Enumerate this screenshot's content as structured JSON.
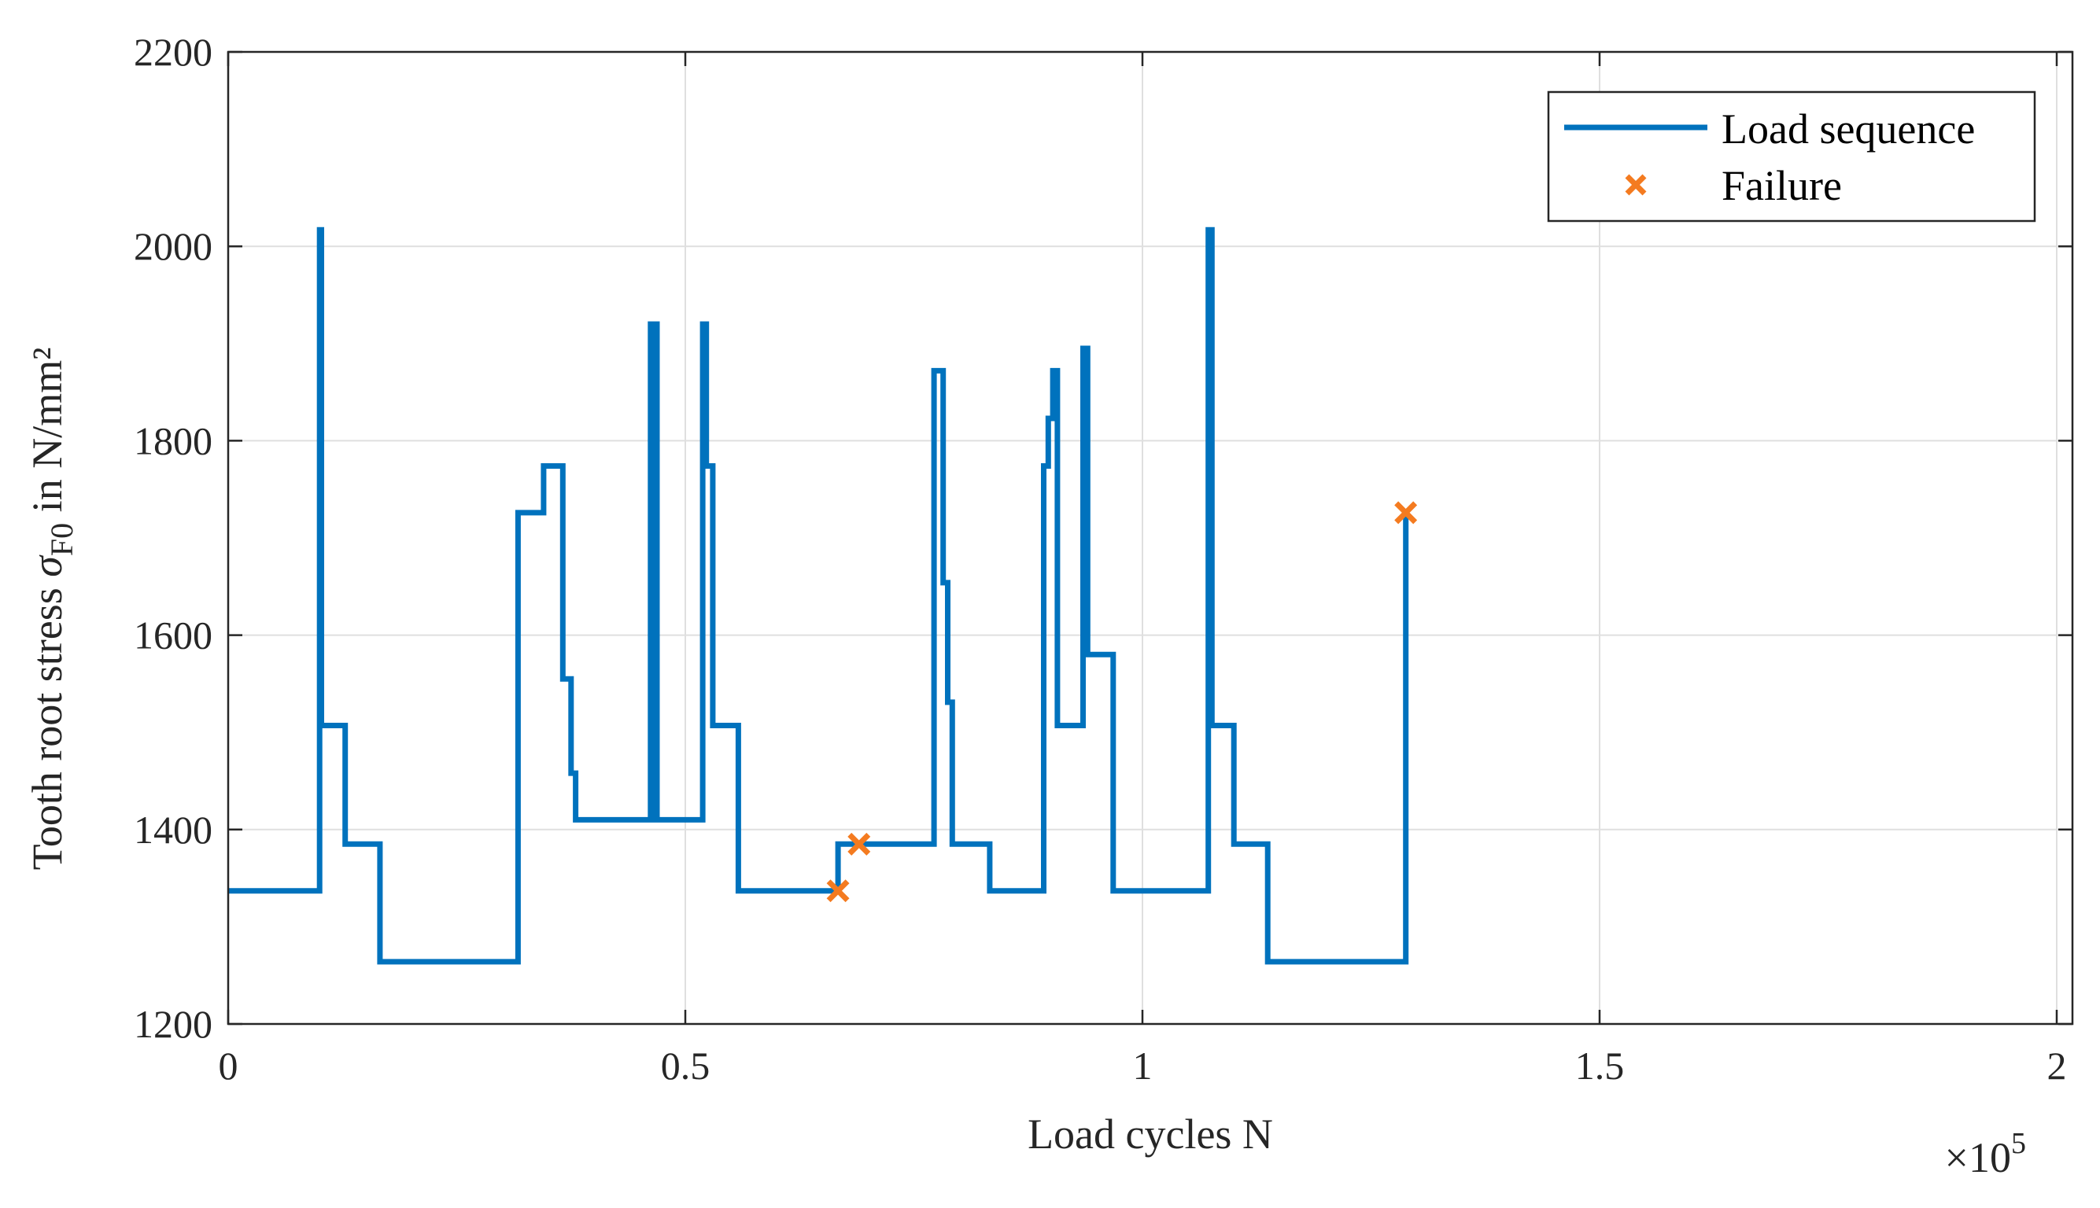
{
  "chart_data": {
    "type": "line",
    "title": "",
    "xlabel": "Load cycles N",
    "ylabel_parts": [
      "Tooth root stress ",
      "σ",
      "F0",
      " in N/mm²"
    ],
    "x_exponent_prefix": "×10",
    "x_exponent": "5",
    "xlim": [
      0,
      2.02
    ],
    "ylim": [
      1200,
      2200
    ],
    "x_scale": "×10^5",
    "xticks": [
      0,
      0.5,
      1,
      1.5,
      2
    ],
    "xtick_labels": [
      "0",
      "0.5",
      "1",
      "1.5",
      "2"
    ],
    "yticks": [
      1200,
      1400,
      1600,
      1800,
      2000,
      2200
    ],
    "ytick_labels": [
      "1200",
      "1400",
      "1600",
      "1800",
      "2000",
      "2200"
    ],
    "grid": true,
    "legend_position": "top-right",
    "legend": [
      "Load sequence",
      "Failure"
    ],
    "colors": {
      "line": "#0072BD",
      "failure": "#F47B20",
      "grid": "#DFDFDF",
      "axis": "#262626"
    },
    "series": [
      {
        "name": "Load sequence",
        "style": "step-line",
        "points": [
          [
            0,
            1337
          ],
          [
            0.1,
            1337
          ],
          [
            0.1,
            2017
          ],
          [
            0.102,
            2017
          ],
          [
            0.102,
            1507
          ],
          [
            0.128,
            1507
          ],
          [
            0.128,
            1385
          ],
          [
            0.166,
            1385
          ],
          [
            0.166,
            1264
          ],
          [
            0.317,
            1264
          ],
          [
            0.317,
            1726
          ],
          [
            0.345,
            1726
          ],
          [
            0.345,
            1774
          ],
          [
            0.366,
            1774
          ],
          [
            0.366,
            1555
          ],
          [
            0.375,
            1555
          ],
          [
            0.375,
            1458
          ],
          [
            0.38,
            1458
          ],
          [
            0.38,
            1410
          ],
          [
            0.462,
            1410
          ],
          [
            0.462,
            1920
          ],
          [
            0.464,
            1920
          ],
          [
            0.464,
            1410
          ],
          [
            0.467,
            1410
          ],
          [
            0.467,
            1920
          ],
          [
            0.469,
            1920
          ],
          [
            0.469,
            1410
          ],
          [
            0.519,
            1410
          ],
          [
            0.519,
            1920
          ],
          [
            0.523,
            1920
          ],
          [
            0.523,
            1774
          ],
          [
            0.53,
            1774
          ],
          [
            0.53,
            1507
          ],
          [
            0.558,
            1507
          ],
          [
            0.558,
            1337
          ],
          [
            0.667,
            1337
          ],
          [
            0.667,
            1385
          ],
          [
            0.772,
            1385
          ],
          [
            0.772,
            1872
          ],
          [
            0.782,
            1872
          ],
          [
            0.782,
            1654
          ],
          [
            0.787,
            1654
          ],
          [
            0.787,
            1531
          ],
          [
            0.792,
            1531
          ],
          [
            0.792,
            1385
          ],
          [
            0.833,
            1385
          ],
          [
            0.833,
            1337
          ],
          [
            0.892,
            1337
          ],
          [
            0.892,
            1774
          ],
          [
            0.897,
            1774
          ],
          [
            0.897,
            1823
          ],
          [
            0.902,
            1823
          ],
          [
            0.902,
            1872
          ],
          [
            0.907,
            1872
          ],
          [
            0.907,
            1507
          ],
          [
            0.935,
            1507
          ],
          [
            0.935,
            1895
          ],
          [
            0.94,
            1895
          ],
          [
            0.94,
            1580
          ],
          [
            0.968,
            1580
          ],
          [
            0.968,
            1337
          ],
          [
            1.072,
            1337
          ],
          [
            1.072,
            2017
          ],
          [
            1.076,
            2017
          ],
          [
            1.076,
            1507
          ],
          [
            1.1,
            1507
          ],
          [
            1.1,
            1385
          ],
          [
            1.137,
            1385
          ],
          [
            1.137,
            1264
          ],
          [
            1.288,
            1264
          ],
          [
            1.288,
            1726
          ]
        ]
      },
      {
        "name": "Failure",
        "style": "markers-x",
        "points": [
          [
            0.667,
            1337
          ],
          [
            0.69,
            1385
          ],
          [
            1.288,
            1726
          ]
        ]
      }
    ]
  }
}
